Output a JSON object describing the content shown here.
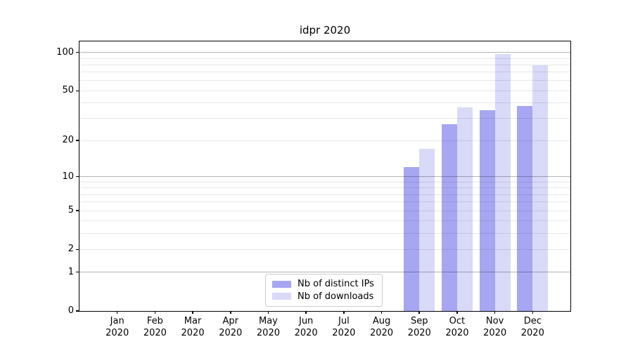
{
  "title": "idpr 2020",
  "legend": {
    "items": [
      {
        "label": "Nb of distinct IPs",
        "color": "#a6a6f2"
      },
      {
        "label": "Nb of downloads",
        "color": "#d9d9f8"
      }
    ]
  },
  "chart_data": {
    "type": "bar",
    "title": "idpr 2020",
    "categories": [
      "Jan 2020",
      "Feb 2020",
      "Mar 2020",
      "Apr 2020",
      "May 2020",
      "Jun 2020",
      "Jul 2020",
      "Aug 2020",
      "Sep 2020",
      "Oct 2020",
      "Nov 2020",
      "Dec 2020"
    ],
    "series": [
      {
        "name": "Nb of distinct IPs",
        "color": "#a6a6f2",
        "values": [
          0,
          0,
          0,
          0,
          0,
          0,
          0,
          0,
          12,
          27,
          35,
          38
        ]
      },
      {
        "name": "Nb of downloads",
        "color": "#d9d9f8",
        "values": [
          0,
          0,
          0,
          0,
          0,
          0,
          0,
          0,
          17,
          37,
          97,
          79
        ]
      }
    ],
    "xlabel": "",
    "ylabel": "",
    "yscale": "symlog",
    "ylim": [
      0,
      122
    ],
    "yticks_labeled": [
      0,
      1,
      2,
      5,
      10,
      20,
      50,
      100
    ],
    "yticks_major_grid": [
      1,
      10,
      100
    ],
    "yticks_minor_grid": [
      2,
      3,
      4,
      5,
      6,
      7,
      8,
      9,
      20,
      30,
      40,
      50,
      60,
      70,
      80,
      90
    ],
    "grid": true,
    "legend_position": "lower center"
  }
}
